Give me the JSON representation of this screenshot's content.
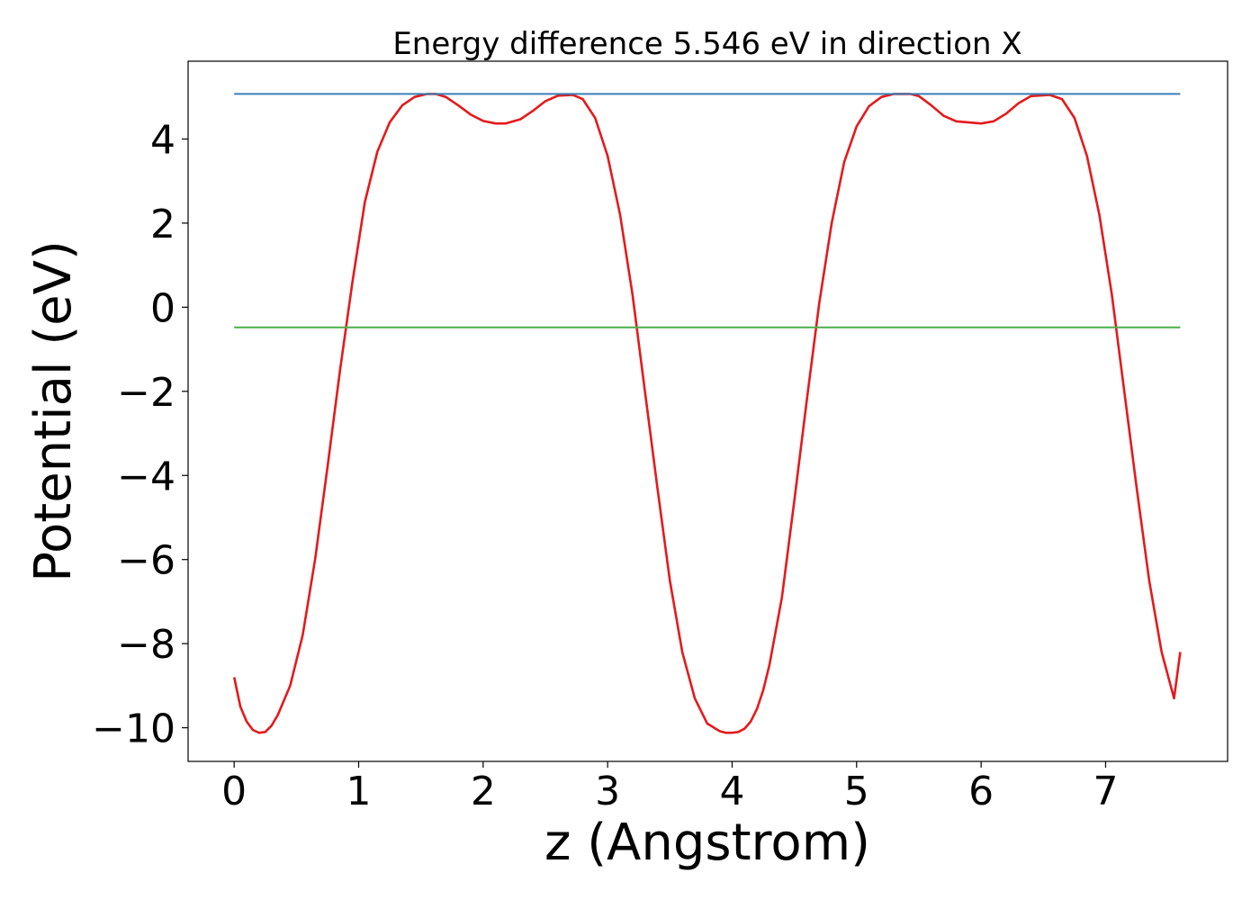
{
  "chart_data": {
    "type": "line",
    "title": "Energy difference 5.546 eV in direction X",
    "xlabel": "z (Angstrom)",
    "ylabel": "Potential (eV)",
    "xlim": [
      -0.37,
      7.98
    ],
    "ylim": [
      -10.8,
      5.85
    ],
    "xticks": [
      0,
      1,
      2,
      3,
      4,
      5,
      6,
      7
    ],
    "yticks": [
      -10,
      -8,
      -6,
      -4,
      -2,
      0,
      2,
      4
    ],
    "xtick_labels": [
      "0",
      "1",
      "2",
      "3",
      "4",
      "5",
      "6",
      "7"
    ],
    "ytick_labels": [
      "−10",
      "−8",
      "−6",
      "−4",
      "−2",
      "0",
      "2",
      "4"
    ],
    "grid": false,
    "legend": "none",
    "series": [
      {
        "color": "#e41a1c",
        "x": [
          0.0,
          0.05,
          0.1,
          0.15,
          0.2,
          0.25,
          0.3,
          0.35,
          0.45,
          0.55,
          0.65,
          0.75,
          0.85,
          0.95,
          1.05,
          1.15,
          1.25,
          1.35,
          1.45,
          1.55,
          1.62,
          1.7,
          1.8,
          1.9,
          2.0,
          2.1,
          2.18,
          2.3,
          2.4,
          2.5,
          2.6,
          2.72,
          2.8,
          2.9,
          3.0,
          3.1,
          3.2,
          3.3,
          3.4,
          3.5,
          3.6,
          3.7,
          3.8,
          3.9,
          3.95,
          4.0,
          4.05,
          4.1,
          4.15,
          4.2,
          4.25,
          4.3,
          4.4,
          4.5,
          4.6,
          4.7,
          4.8,
          4.9,
          5.0,
          5.1,
          5.2,
          5.3,
          5.43,
          5.5,
          5.6,
          5.7,
          5.8,
          6.0,
          6.1,
          6.2,
          6.3,
          6.4,
          6.55,
          6.65,
          6.75,
          6.85,
          6.95,
          7.05,
          7.15,
          7.25,
          7.35,
          7.45,
          7.55,
          7.6
        ],
        "y": [
          -8.8,
          -9.5,
          -9.85,
          -10.05,
          -10.12,
          -10.1,
          -9.95,
          -9.7,
          -9.0,
          -7.8,
          -6.0,
          -3.8,
          -1.5,
          0.6,
          2.5,
          3.7,
          4.4,
          4.8,
          5.0,
          5.07,
          5.07,
          5.0,
          4.8,
          4.58,
          4.43,
          4.37,
          4.37,
          4.47,
          4.67,
          4.9,
          5.03,
          5.05,
          4.95,
          4.5,
          3.6,
          2.2,
          0.3,
          -2.0,
          -4.3,
          -6.5,
          -8.2,
          -9.3,
          -9.9,
          -10.08,
          -10.12,
          -10.12,
          -10.1,
          -10.02,
          -9.85,
          -9.55,
          -9.1,
          -8.5,
          -6.9,
          -4.6,
          -2.2,
          0.1,
          2.0,
          3.45,
          4.3,
          4.78,
          5.0,
          5.07,
          5.07,
          5.02,
          4.8,
          4.55,
          4.42,
          4.37,
          4.42,
          4.6,
          4.85,
          5.02,
          5.05,
          4.95,
          4.5,
          3.6,
          2.2,
          0.3,
          -2.0,
          -4.3,
          -6.5,
          -8.2,
          -9.3,
          -8.2
        ]
      },
      {
        "color": "#377eb8",
        "x": [
          0.0,
          7.6
        ],
        "y": [
          5.07,
          5.07
        ]
      },
      {
        "color": "#4daf4a",
        "x": [
          0.0,
          7.6
        ],
        "y": [
          -0.48,
          -0.48
        ]
      }
    ]
  }
}
